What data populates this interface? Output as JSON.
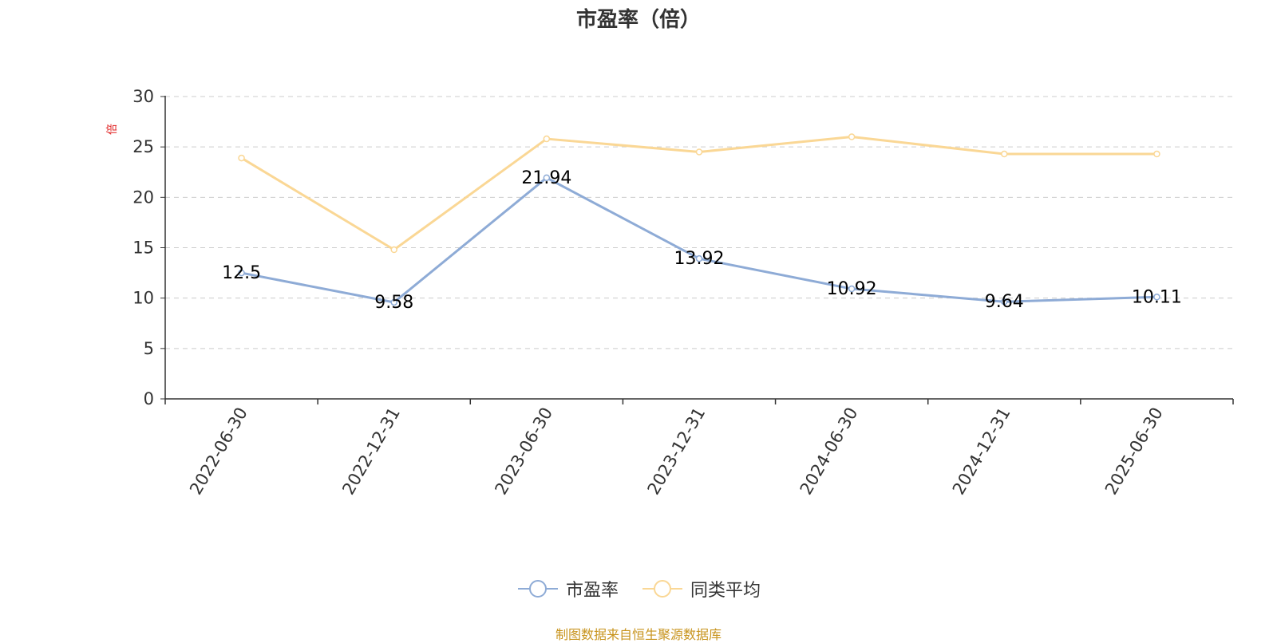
{
  "chart_data": {
    "type": "line",
    "title": "市盈率（倍）",
    "ylabel": "倍",
    "x": [
      "2022-06-30",
      "2022-12-31",
      "2023-06-30",
      "2023-12-31",
      "2024-06-30",
      "2024-12-31",
      "2025-06-30"
    ],
    "ylim": [
      0,
      30
    ],
    "yticks": [
      0,
      5,
      10,
      15,
      20,
      25,
      30
    ],
    "grid": true,
    "legend_position": "bottom",
    "series": [
      {
        "name": "市盈率",
        "color": "#8eabd6",
        "values": [
          12.5,
          9.58,
          21.94,
          13.92,
          10.92,
          9.64,
          10.11
        ],
        "labels": [
          "12.5",
          "9.58",
          "21.94",
          "13.92",
          "10.92",
          "9.64",
          "10.11"
        ]
      },
      {
        "name": "同类平均",
        "color": "#fad795",
        "values": [
          23.9,
          14.8,
          25.8,
          24.5,
          26.0,
          24.3,
          24.3
        ]
      }
    ]
  },
  "footer": "制图数据来自恒生聚源数据库",
  "colors": {
    "axis": "#333333",
    "grid": "#cccccc",
    "ylabel": "#e02020",
    "footer": "#c8941e"
  }
}
